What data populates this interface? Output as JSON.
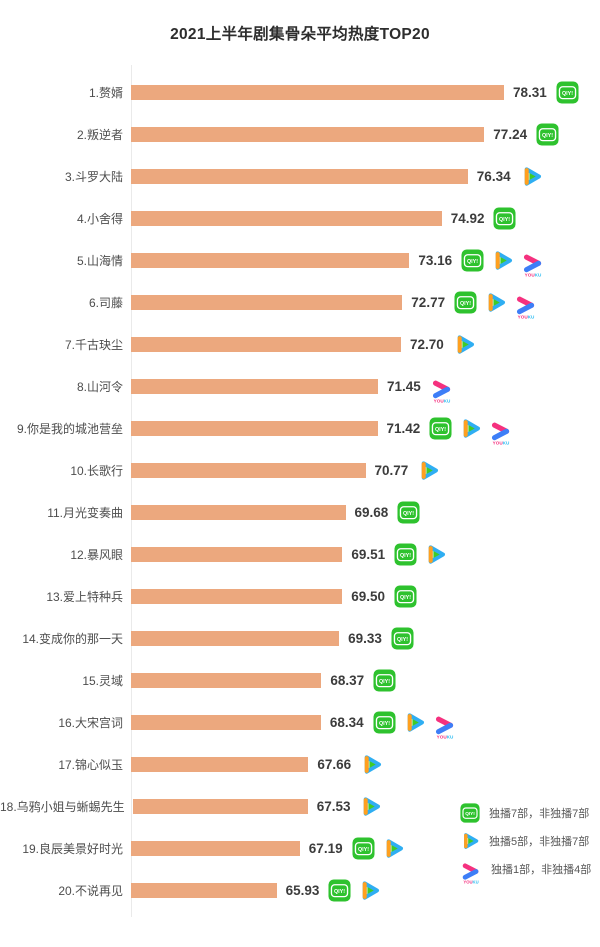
{
  "chart_data": {
    "type": "bar",
    "orientation": "horizontal",
    "title": "2021上半年剧集骨朵平均热度TOP20",
    "xlim": [
      58,
      80
    ],
    "grid": false,
    "legend_position": "bottom-right",
    "items": [
      {
        "rank": 1,
        "label": "1.赘婿",
        "value": "78.31",
        "platforms": [
          "iqiyi"
        ]
      },
      {
        "rank": 2,
        "label": "2.叛逆者",
        "value": "77.24",
        "platforms": [
          "iqiyi"
        ]
      },
      {
        "rank": 3,
        "label": "3.斗罗大陆",
        "value": "76.34",
        "platforms": [
          "tencent"
        ]
      },
      {
        "rank": 4,
        "label": "4.小舍得",
        "value": "74.92",
        "platforms": [
          "iqiyi"
        ]
      },
      {
        "rank": 5,
        "label": "5.山海情",
        "value": "73.16",
        "platforms": [
          "iqiyi",
          "tencent",
          "youku"
        ]
      },
      {
        "rank": 6,
        "label": "6.司藤",
        "value": "72.77",
        "platforms": [
          "iqiyi",
          "tencent",
          "youku"
        ]
      },
      {
        "rank": 7,
        "label": "7.千古玦尘",
        "value": "72.70",
        "platforms": [
          "tencent"
        ]
      },
      {
        "rank": 8,
        "label": "8.山河令",
        "value": "71.45",
        "platforms": [
          "youku"
        ]
      },
      {
        "rank": 9,
        "label": "9.你是我的城池营垒",
        "value": "71.42",
        "platforms": [
          "iqiyi",
          "tencent",
          "youku"
        ]
      },
      {
        "rank": 10,
        "label": "10.长歌行",
        "value": "70.77",
        "platforms": [
          "tencent"
        ]
      },
      {
        "rank": 11,
        "label": "11.月光变奏曲",
        "value": "69.68",
        "platforms": [
          "iqiyi"
        ]
      },
      {
        "rank": 12,
        "label": "12.暴风眼",
        "value": "69.51",
        "platforms": [
          "iqiyi",
          "tencent"
        ]
      },
      {
        "rank": 13,
        "label": "13.爱上特种兵",
        "value": "69.50",
        "platforms": [
          "iqiyi"
        ]
      },
      {
        "rank": 14,
        "label": "14.变成你的那一天",
        "value": "69.33",
        "platforms": [
          "iqiyi"
        ]
      },
      {
        "rank": 15,
        "label": "15.灵域",
        "value": "68.37",
        "platforms": [
          "iqiyi"
        ]
      },
      {
        "rank": 16,
        "label": "16.大宋宫词",
        "value": "68.34",
        "platforms": [
          "iqiyi",
          "tencent",
          "youku"
        ]
      },
      {
        "rank": 17,
        "label": "17.锦心似玉",
        "value": "67.66",
        "platforms": [
          "tencent"
        ]
      },
      {
        "rank": 18,
        "label": "18.乌鸦小姐与蜥蜴先生",
        "value": "67.53",
        "platforms": [
          "tencent"
        ]
      },
      {
        "rank": 19,
        "label": "19.良辰美景好时光",
        "value": "67.19",
        "platforms": [
          "iqiyi",
          "tencent"
        ]
      },
      {
        "rank": 20,
        "label": "20.不说再见",
        "value": "65.93",
        "platforms": [
          "iqiyi",
          "tencent"
        ]
      }
    ],
    "legend": [
      {
        "icon": "iqiyi-icon",
        "label": "独播7部，非独播7部"
      },
      {
        "icon": "tencent-video-icon",
        "label": "独播5部，非独播7部"
      },
      {
        "icon": "youku-icon",
        "label": "独播1部，非独播4部"
      }
    ]
  },
  "icons": {
    "iqiyi": {
      "name": "iqiyi-icon",
      "glyph_text": "QIY!"
    },
    "tencent": {
      "name": "tencent-video-icon",
      "glyph": "play-triangle"
    },
    "youku": {
      "name": "youku-icon",
      "glyph_text": "YOUKU"
    }
  },
  "colors": {
    "bar": "#ECA87E",
    "title_text": "#2D2D2D",
    "value_text": "#3C3C3C",
    "label_text": "#4D4D4D",
    "legend_text": "#585858",
    "axis_line": "#EAEAEA",
    "iqiyi_green": "#2EC22E",
    "tencent_blue": "#2FAEF2",
    "tencent_orange": "#FFA01F",
    "tencent_green": "#3FCB27",
    "youku_pink": "#F5317F",
    "youku_blue": "#3D7EF7",
    "youku_cyan": "#2FBDF2"
  }
}
